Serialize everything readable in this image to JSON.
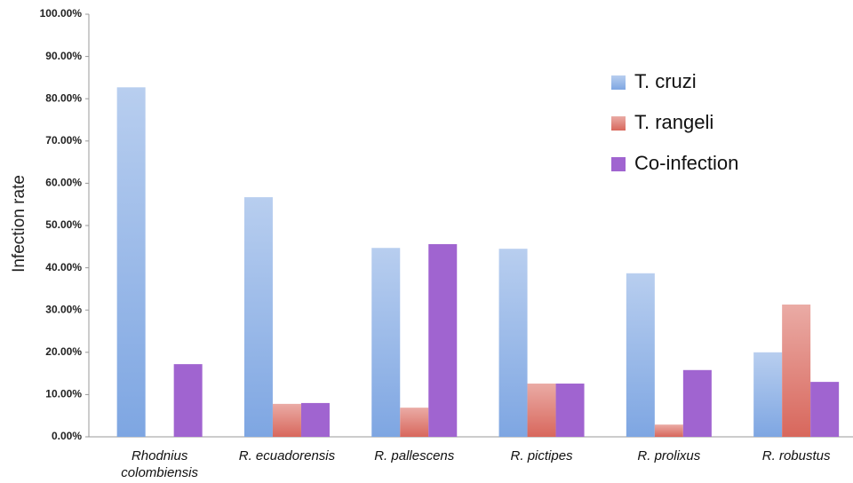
{
  "chart_data": {
    "type": "bar",
    "y_label": "Infection rate",
    "categories": [
      "Rhodnius colombiensis",
      "R. ecuadorensis",
      "R. pallescens",
      "R. pictipes",
      "R. prolixus",
      "R. robustus"
    ],
    "series": [
      {
        "name": "T. cruzi",
        "color": "#7ea6e2",
        "values": [
          82.7,
          56.7,
          44.7,
          44.5,
          38.7,
          20.0
        ]
      },
      {
        "name": "T. rangeli",
        "color": "#d8675c",
        "values": [
          0,
          7.8,
          6.9,
          12.6,
          2.9,
          31.3
        ]
      },
      {
        "name": "Co-infection",
        "color": "#a064d0",
        "values": [
          17.2,
          8.0,
          45.6,
          12.6,
          15.8,
          13.0
        ]
      }
    ],
    "ylim": [
      0,
      100
    ],
    "yticks": [
      {
        "value": 0,
        "label": "0.00%"
      },
      {
        "value": 10,
        "label": "10.00%"
      },
      {
        "value": 20,
        "label": "20.00%"
      },
      {
        "value": 30,
        "label": "30.00%"
      },
      {
        "value": 40,
        "label": "40.00%"
      },
      {
        "value": 50,
        "label": "50.00%"
      },
      {
        "value": 60,
        "label": "60.00%"
      },
      {
        "value": 70,
        "label": "70.00%"
      },
      {
        "value": 80,
        "label": "80.00%"
      },
      {
        "value": 90,
        "label": "90.00%"
      },
      {
        "value": 100,
        "label": "100.00%"
      }
    ],
    "grid": false,
    "legend": "upper right"
  }
}
